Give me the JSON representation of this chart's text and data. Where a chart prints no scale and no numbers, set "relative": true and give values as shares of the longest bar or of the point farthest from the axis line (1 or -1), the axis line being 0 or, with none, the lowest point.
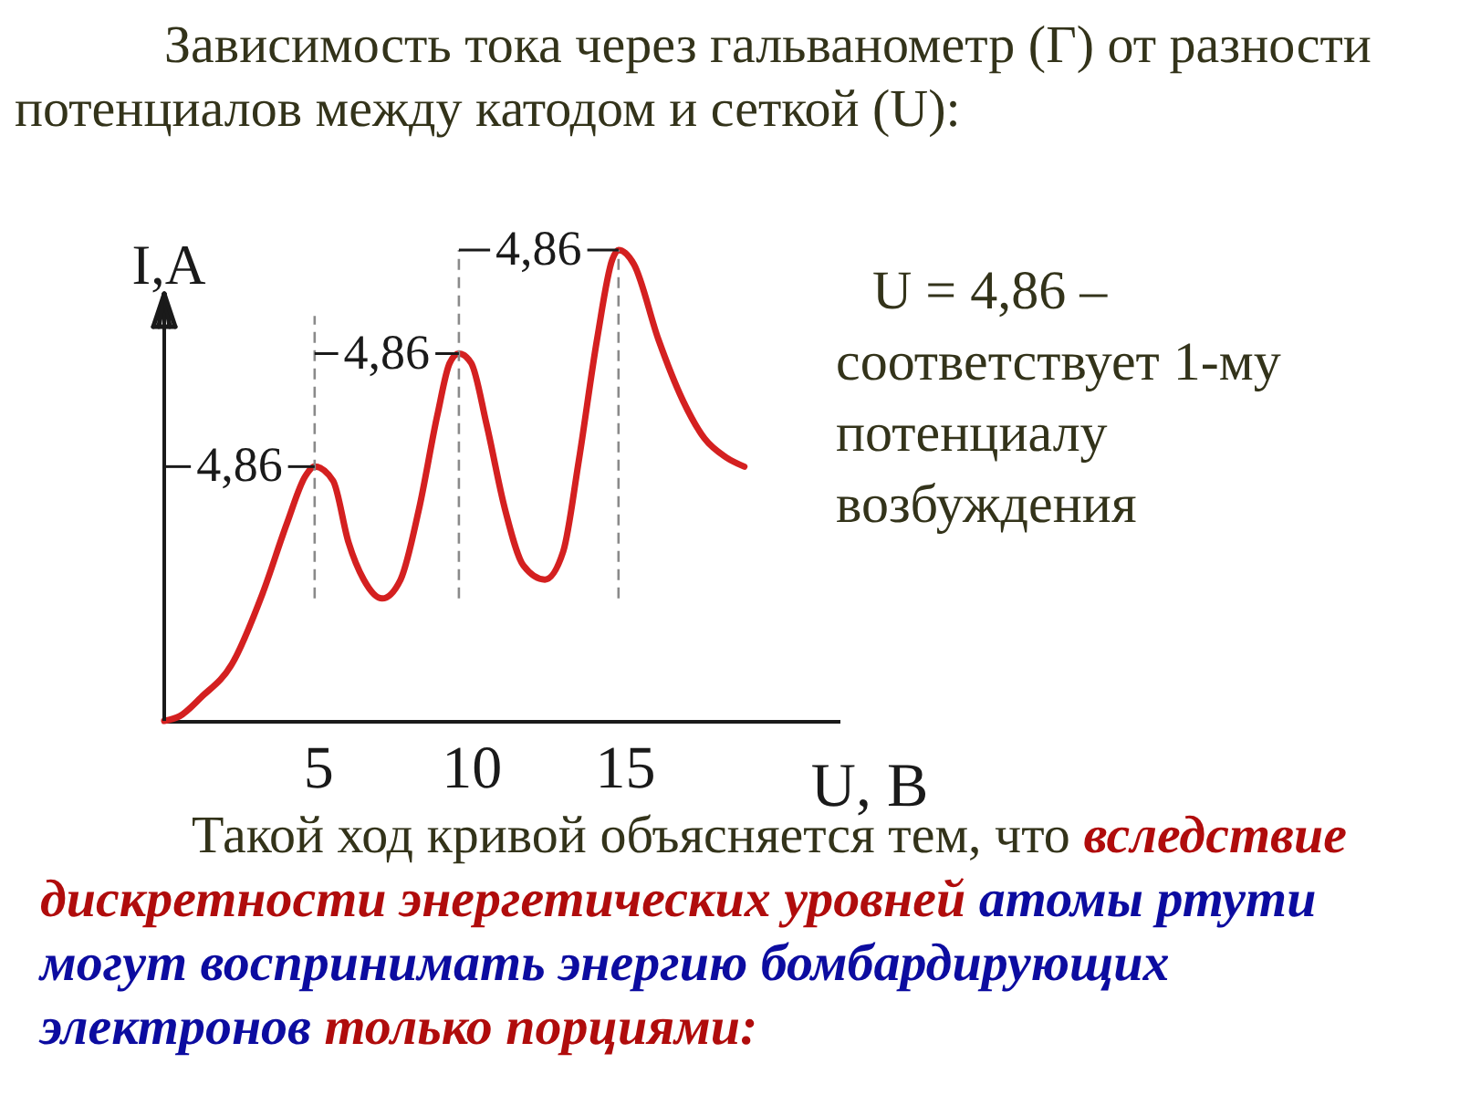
{
  "chart_data": {
    "type": "line",
    "title": "Зависимость тока через гальванометр (Г) от разности потенциалов между катодом и сеткой (U):",
    "xlabel": "U, В",
    "ylabel": "I,А",
    "relative": true,
    "x": [
      0,
      0.5,
      1.2,
      2.2,
      3.2,
      4.0,
      4.6,
      4.9,
      5.5,
      6.0,
      6.5,
      7.1,
      7.7,
      8.3,
      8.9,
      9.3,
      9.6,
      10.0,
      10.5,
      11.1,
      11.7,
      12.4,
      13.0,
      13.5,
      14.1,
      14.6,
      14.8,
      15.3,
      16.1,
      16.9,
      17.6,
      18.3,
      18.9
    ],
    "series": [
      {
        "color": "#d42020",
        "values": [
          0,
          0.01,
          0.05,
          0.12,
          0.27,
          0.42,
          0.52,
          0.54,
          0.51,
          0.38,
          0.3,
          0.26,
          0.3,
          0.45,
          0.65,
          0.76,
          0.78,
          0.76,
          0.63,
          0.45,
          0.33,
          0.3,
          0.36,
          0.55,
          0.81,
          0.98,
          1.0,
          0.97,
          0.81,
          0.68,
          0.6,
          0.56,
          0.54
        ]
      }
    ],
    "xlim": [
      0,
      22
    ],
    "xticks": [
      5,
      10,
      15
    ],
    "marker": "none",
    "line_style": "solid",
    "ref_lines": [
      {
        "axis": "x",
        "value": 4.9,
        "color": "#8a8a8a",
        "line_style": "dashed"
      },
      {
        "axis": "x",
        "value": 9.6,
        "color": "#8a8a8a",
        "line_style": "dashed"
      },
      {
        "axis": "x",
        "value": 14.8,
        "color": "#8a8a8a",
        "line_style": "dashed"
      }
    ],
    "annotations": [
      {
        "text": "4,86",
        "x": 4.9,
        "y": 0.54
      },
      {
        "text": "4,86",
        "x": 9.6,
        "y": 0.78
      },
      {
        "text": "4,86",
        "x": 14.8,
        "y": 1.0
      },
      "U = 4,86 – соответствует 1-му потенциалу возбуждения",
      "Такой ход кривой объясняется тем, что",
      "вследствие",
      "дискретности энергетических уровней",
      "атомы ртути",
      "могут воспринимать энергию бомбардирующих",
      "электронов",
      "только порциями:"
    ]
  }
}
